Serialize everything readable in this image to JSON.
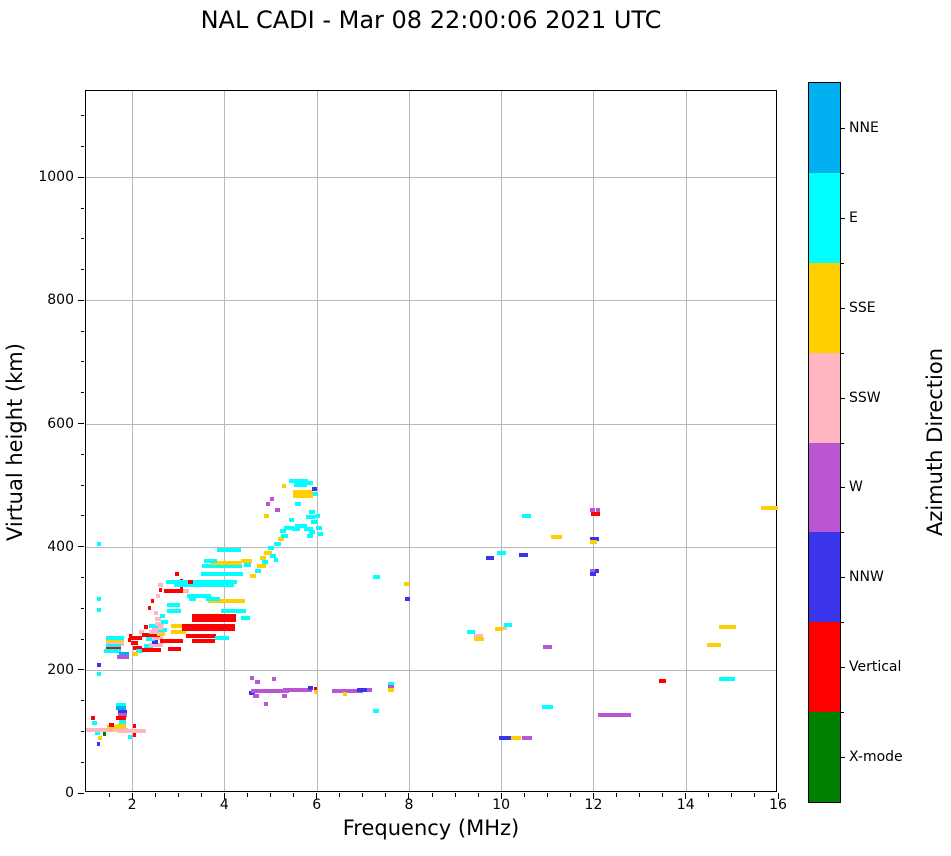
{
  "title": "NAL CADI - Mar 08 22:00:06 2021 UTC",
  "chart_data": {
    "type": "scatter",
    "title": "NAL CADI - Mar 08 22:00:06 2021 UTC",
    "xlabel": "Frequency (MHz)",
    "ylabel": "Virtual height (km)",
    "xlim": [
      1,
      16
    ],
    "ylim": [
      0,
      1140
    ],
    "x_major_ticks": [
      2,
      4,
      6,
      8,
      10,
      12,
      14,
      16
    ],
    "y_major_ticks": [
      0,
      200,
      400,
      600,
      800,
      1000
    ],
    "x_minor_step": 0.5,
    "y_minor_step": 50,
    "grid": true,
    "colorbar": {
      "label": "Azimuth Direction",
      "categories": [
        {
          "name": "NNE",
          "key": "NNE",
          "color": "#00b0f0"
        },
        {
          "name": "E",
          "key": "E",
          "color": "#00ffff"
        },
        {
          "name": "SSE",
          "key": "SSE",
          "color": "#ffd000"
        },
        {
          "name": "SSW",
          "key": "SSW",
          "color": "#ffb6c1"
        },
        {
          "name": "W",
          "key": "W",
          "color": "#ba55d3"
        },
        {
          "name": "NNW",
          "key": "NNW",
          "color": "#3a35ea"
        },
        {
          "name": "Vertical",
          "key": "V",
          "color": "#ff0000"
        },
        {
          "name": "X-mode",
          "key": "X",
          "color": "#008000"
        }
      ]
    },
    "points_format": [
      "freq_mhz",
      "height_km",
      "width_mhz",
      "direction"
    ],
    "points": [
      [
        1.12,
        103,
        0.08,
        "SSW"
      ],
      [
        1.15,
        121,
        0.08,
        "V"
      ],
      [
        1.18,
        113,
        0.1,
        "E"
      ],
      [
        1.25,
        97,
        0.12,
        "E"
      ],
      [
        1.3,
        90,
        0.08,
        "SSE"
      ],
      [
        1.32,
        103,
        0.12,
        "V"
      ],
      [
        1.4,
        96,
        0.06,
        "X"
      ],
      [
        1.45,
        103,
        0.9,
        "SSW"
      ],
      [
        1.62,
        107,
        0.35,
        "SSE"
      ],
      [
        1.55,
        111,
        0.1,
        "V"
      ],
      [
        1.75,
        143,
        0.22,
        "E"
      ],
      [
        1.75,
        138,
        0.22,
        "NNE"
      ],
      [
        1.79,
        132,
        0.18,
        "NNW"
      ],
      [
        1.79,
        127,
        0.18,
        "W"
      ],
      [
        1.76,
        121,
        0.2,
        "V"
      ],
      [
        1.79,
        115,
        0.15,
        "E"
      ],
      [
        1.77,
        108,
        0.2,
        "SSE"
      ],
      [
        1.9,
        101,
        0.42,
        "SSW"
      ],
      [
        2.15,
        100,
        0.28,
        "SSW"
      ],
      [
        2.06,
        95,
        0.05,
        "V"
      ],
      [
        2.06,
        109,
        0.05,
        "V"
      ],
      [
        1.95,
        91,
        0.1,
        "E"
      ],
      [
        1.28,
        79,
        0.06,
        "NNW"
      ],
      [
        1.28,
        405,
        0.07,
        "E"
      ],
      [
        1.28,
        315,
        0.07,
        "E"
      ],
      [
        1.28,
        297,
        0.07,
        "E"
      ],
      [
        1.28,
        208,
        0.07,
        "NNW"
      ],
      [
        1.28,
        193,
        0.07,
        "E"
      ],
      [
        1.63,
        251,
        0.38,
        "E"
      ],
      [
        1.63,
        246,
        0.38,
        "SSE"
      ],
      [
        1.63,
        242,
        0.38,
        "SSW"
      ],
      [
        1.6,
        238,
        0.33,
        "E"
      ],
      [
        1.6,
        234,
        0.33,
        "V"
      ],
      [
        1.58,
        230,
        0.36,
        "E"
      ],
      [
        1.83,
        226,
        0.22,
        "NNE"
      ],
      [
        1.8,
        221,
        0.27,
        "W"
      ],
      [
        1.95,
        248,
        0.06,
        "V"
      ],
      [
        1.97,
        255,
        0.06,
        "V"
      ],
      [
        2.1,
        252,
        0.24,
        "V"
      ],
      [
        2.05,
        243,
        0.16,
        "V"
      ],
      [
        2.12,
        236,
        0.2,
        "V"
      ],
      [
        2.16,
        230,
        0.16,
        "E"
      ],
      [
        2.2,
        262,
        0.1,
        "SSW"
      ],
      [
        2.3,
        270,
        0.1,
        "V"
      ],
      [
        2.28,
        257,
        0.12,
        "V"
      ],
      [
        2.07,
        225,
        0.1,
        "SSE"
      ],
      [
        2.42,
        232,
        0.42,
        "V"
      ],
      [
        2.36,
        238,
        0.2,
        "E"
      ],
      [
        2.52,
        240,
        0.3,
        "SSW"
      ],
      [
        2.5,
        246,
        0.13,
        "NNW"
      ],
      [
        2.4,
        250,
        0.2,
        "E"
      ],
      [
        2.56,
        252,
        0.24,
        "SSW"
      ],
      [
        2.46,
        257,
        0.28,
        "V"
      ],
      [
        2.62,
        258,
        0.18,
        "SSE"
      ],
      [
        2.5,
        262,
        0.28,
        "SSW"
      ],
      [
        2.66,
        264,
        0.18,
        "E"
      ],
      [
        2.55,
        268,
        0.26,
        "SSW"
      ],
      [
        2.46,
        272,
        0.2,
        "E"
      ],
      [
        2.6,
        275,
        0.2,
        "SSW"
      ],
      [
        2.7,
        278,
        0.16,
        "E"
      ],
      [
        2.56,
        282,
        0.13,
        "SSW"
      ],
      [
        2.66,
        288,
        0.1,
        "E"
      ],
      [
        2.52,
        292,
        0.08,
        "SSW"
      ],
      [
        2.37,
        300,
        0.07,
        "V"
      ],
      [
        2.44,
        312,
        0.07,
        "V"
      ],
      [
        2.56,
        320,
        0.07,
        "SSW"
      ],
      [
        2.62,
        330,
        0.06,
        "V"
      ],
      [
        2.62,
        337,
        0.1,
        "SSW"
      ],
      [
        3.0,
        262,
        0.32,
        "SSE"
      ],
      [
        3.0,
        271,
        0.32,
        "SSE"
      ],
      [
        2.86,
        247,
        0.5,
        "V"
      ],
      [
        2.92,
        234,
        0.3,
        "V"
      ],
      [
        2.9,
        296,
        0.3,
        "E"
      ],
      [
        2.9,
        305,
        0.28,
        "E"
      ],
      [
        2.9,
        328,
        0.4,
        "V"
      ],
      [
        3.17,
        328,
        0.12,
        "SSW"
      ],
      [
        2.97,
        356,
        0.1,
        "V"
      ],
      [
        3.08,
        345,
        0.05,
        "V"
      ],
      [
        3.08,
        335,
        0.05,
        "V"
      ],
      [
        3.55,
        247,
        0.5,
        "V"
      ],
      [
        3.5,
        255,
        0.65,
        "V"
      ],
      [
        3.95,
        252,
        0.3,
        "E"
      ],
      [
        3.65,
        266,
        1.15,
        "V"
      ],
      [
        3.65,
        271,
        1.15,
        "V"
      ],
      [
        3.78,
        281,
        0.95,
        "V"
      ],
      [
        3.78,
        287,
        0.95,
        "V"
      ],
      [
        4.45,
        284,
        0.2,
        "E"
      ],
      [
        4.2,
        296,
        0.55,
        "E"
      ],
      [
        3.45,
        320,
        0.5,
        "E"
      ],
      [
        3.3,
        315,
        0.15,
        "E"
      ],
      [
        4.05,
        311,
        0.8,
        "SSE"
      ],
      [
        3.75,
        315,
        0.3,
        "E"
      ],
      [
        3.55,
        337,
        1.3,
        "E"
      ],
      [
        3.5,
        342,
        1.55,
        "E"
      ],
      [
        3.27,
        342,
        0.12,
        "V"
      ],
      [
        3.95,
        356,
        0.9,
        "E"
      ],
      [
        3.95,
        369,
        0.85,
        "E"
      ],
      [
        4.02,
        374,
        0.68,
        "SSE"
      ],
      [
        3.7,
        377,
        0.28,
        "E"
      ],
      [
        4.1,
        395,
        0.5,
        "E"
      ],
      [
        4.47,
        377,
        0.24,
        "SSE"
      ],
      [
        4.5,
        371,
        0.15,
        "E"
      ],
      [
        4.62,
        352,
        0.15,
        "SSE"
      ],
      [
        4.72,
        360,
        0.13,
        "E"
      ],
      [
        4.8,
        368,
        0.2,
        "SSE"
      ],
      [
        4.88,
        375,
        0.15,
        "E"
      ],
      [
        4.84,
        382,
        0.12,
        "SSE"
      ],
      [
        4.95,
        390,
        0.18,
        "SSE"
      ],
      [
        5.05,
        385,
        0.13,
        "E"
      ],
      [
        5.12,
        378,
        0.1,
        "E"
      ],
      [
        5.0,
        398,
        0.13,
        "E"
      ],
      [
        5.15,
        405,
        0.15,
        "E"
      ],
      [
        5.22,
        412,
        0.13,
        "SSE"
      ],
      [
        5.3,
        418,
        0.15,
        "E"
      ],
      [
        5.27,
        425,
        0.12,
        "E"
      ],
      [
        5.4,
        430,
        0.2,
        "E"
      ],
      [
        5.55,
        428,
        0.16,
        "E"
      ],
      [
        5.65,
        434,
        0.26,
        "E"
      ],
      [
        5.82,
        428,
        0.2,
        "E"
      ],
      [
        5.9,
        424,
        0.15,
        "E"
      ],
      [
        5.86,
        418,
        0.13,
        "E"
      ],
      [
        5.95,
        440,
        0.15,
        "E"
      ],
      [
        5.86,
        448,
        0.2,
        "E"
      ],
      [
        5.9,
        456,
        0.15,
        "E"
      ],
      [
        6.02,
        450,
        0.1,
        "E"
      ],
      [
        6.05,
        430,
        0.13,
        "E"
      ],
      [
        6.08,
        420,
        0.1,
        "E"
      ],
      [
        5.15,
        459,
        0.1,
        "W"
      ],
      [
        5.03,
        478,
        0.09,
        "W"
      ],
      [
        4.92,
        450,
        0.11,
        "SSE"
      ],
      [
        4.95,
        470,
        0.08,
        "W"
      ],
      [
        5.6,
        470,
        0.13,
        "E"
      ],
      [
        5.45,
        443,
        0.12,
        "E"
      ],
      [
        5.7,
        482,
        0.42,
        "SSE"
      ],
      [
        5.7,
        489,
        0.42,
        "SSE"
      ],
      [
        5.65,
        500,
        0.3,
        "E"
      ],
      [
        5.6,
        506,
        0.42,
        "E"
      ],
      [
        5.85,
        503,
        0.16,
        "E"
      ],
      [
        5.95,
        494,
        0.1,
        "NNW"
      ],
      [
        5.97,
        485,
        0.12,
        "E"
      ],
      [
        5.3,
        499,
        0.09,
        "SSE"
      ],
      [
        4.6,
        163,
        0.12,
        "NNW"
      ],
      [
        4.78,
        165,
        0.4,
        "W"
      ],
      [
        5.12,
        166,
        0.55,
        "W"
      ],
      [
        5.5,
        167,
        0.45,
        "W"
      ],
      [
        5.76,
        168,
        0.26,
        "W"
      ],
      [
        5.86,
        170,
        0.1,
        "NNW"
      ],
      [
        5.98,
        169,
        0.06,
        "V"
      ],
      [
        5.98,
        164,
        0.06,
        "SSE"
      ],
      [
        4.6,
        187,
        0.08,
        "W"
      ],
      [
        5.07,
        185,
        0.08,
        "W"
      ],
      [
        4.72,
        180,
        0.1,
        "W"
      ],
      [
        4.9,
        145,
        0.08,
        "W"
      ],
      [
        4.68,
        157,
        0.12,
        "W"
      ],
      [
        5.3,
        158,
        0.1,
        "W"
      ],
      [
        6.5,
        166,
        0.32,
        "W"
      ],
      [
        6.82,
        166,
        0.38,
        "W"
      ],
      [
        7.02,
        168,
        0.28,
        "NNW"
      ],
      [
        6.62,
        161,
        0.08,
        "SSE"
      ],
      [
        7.15,
        167,
        0.1,
        "W"
      ],
      [
        7.3,
        350,
        0.16,
        "E"
      ],
      [
        7.28,
        133,
        0.13,
        "E"
      ],
      [
        7.62,
        177,
        0.13,
        "E"
      ],
      [
        7.62,
        172,
        0.13,
        "W"
      ],
      [
        7.62,
        167,
        0.13,
        "SSE"
      ],
      [
        7.95,
        340,
        0.1,
        "SSE"
      ],
      [
        7.97,
        315,
        0.12,
        "NNW"
      ],
      [
        9.75,
        382,
        0.18,
        "NNW"
      ],
      [
        10.0,
        389,
        0.2,
        "E"
      ],
      [
        10.48,
        387,
        0.2,
        "NNW"
      ],
      [
        10.55,
        450,
        0.2,
        "E"
      ],
      [
        11.2,
        416,
        0.25,
        "SSE"
      ],
      [
        9.35,
        262,
        0.18,
        "E"
      ],
      [
        9.5,
        255,
        0.2,
        "SSW"
      ],
      [
        9.52,
        250,
        0.2,
        "SSE"
      ],
      [
        9.95,
        266,
        0.18,
        "SSE"
      ],
      [
        10.08,
        268,
        0.09,
        "SSW"
      ],
      [
        10.15,
        273,
        0.18,
        "E"
      ],
      [
        11.0,
        237,
        0.2,
        "W"
      ],
      [
        11.0,
        139,
        0.25,
        "E"
      ],
      [
        10.1,
        90,
        0.3,
        "NNW"
      ],
      [
        10.32,
        90,
        0.2,
        "SSE"
      ],
      [
        10.56,
        90,
        0.2,
        "W"
      ],
      [
        11.98,
        459,
        0.1,
        "W"
      ],
      [
        12.09,
        459,
        0.09,
        "W"
      ],
      [
        12.0,
        453,
        0.1,
        "V"
      ],
      [
        12.09,
        453,
        0.09,
        "V"
      ],
      [
        11.98,
        412,
        0.1,
        "NNW"
      ],
      [
        12.08,
        412,
        0.08,
        "NNW"
      ],
      [
        12.0,
        407,
        0.16,
        "SSE"
      ],
      [
        11.98,
        360,
        0.1,
        "W"
      ],
      [
        12.08,
        360,
        0.08,
        "NNW"
      ],
      [
        12.0,
        355,
        0.13,
        "NNW"
      ],
      [
        12.45,
        127,
        0.72,
        "W"
      ],
      [
        13.5,
        182,
        0.15,
        "V"
      ],
      [
        14.9,
        185,
        0.35,
        "E"
      ],
      [
        14.9,
        270,
        0.36,
        "SSE"
      ],
      [
        14.62,
        241,
        0.3,
        "SSE"
      ],
      [
        15.82,
        463,
        0.36,
        "SSE"
      ]
    ]
  }
}
